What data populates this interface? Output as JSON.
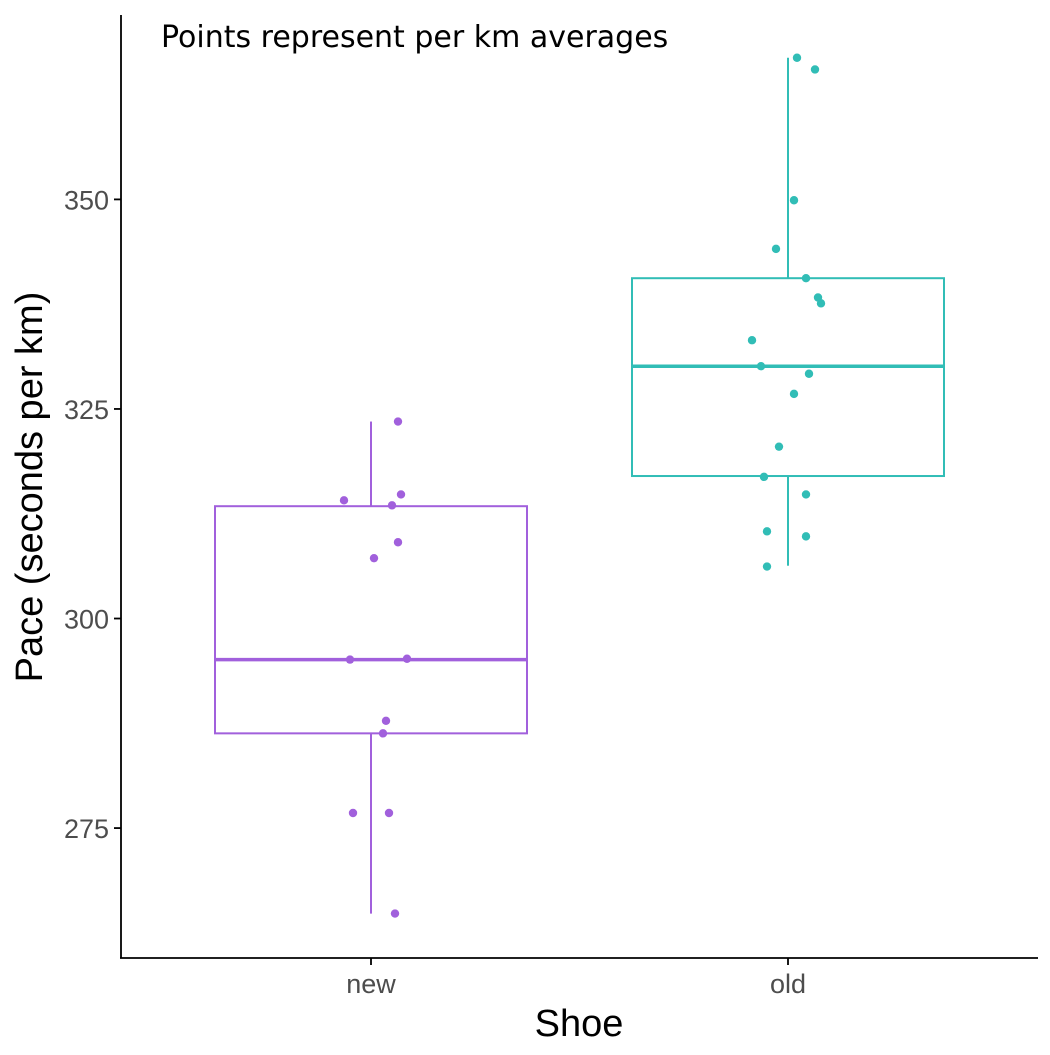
{
  "chart_data": {
    "type": "boxplot",
    "annotation": "Points represent per km averages",
    "xlabel": "Shoe",
    "ylabel": "Pace (seconds per km)",
    "categories": [
      "new",
      "old"
    ],
    "ylim": [
      259.5,
      372
    ],
    "yticks": [
      275,
      300,
      325,
      350
    ],
    "grid": false,
    "legend": "none",
    "colors": {
      "new": "#a160dc",
      "old": "#31bdb6",
      "axis": "#000000",
      "tick_label": "#4d4d4d"
    },
    "series": [
      {
        "category": "new",
        "boxplot": {
          "whisker_low": 264.8,
          "q1": 286.3,
          "median": 295.1,
          "q3": 313.4,
          "whisker_high": 323.5
        },
        "points": [
          {
            "x_jitter": 0.09,
            "y": 323.5
          },
          {
            "x_jitter": -0.09,
            "y": 314.1
          },
          {
            "x_jitter": 0.1,
            "y": 314.8
          },
          {
            "x_jitter": 0.07,
            "y": 313.5
          },
          {
            "x_jitter": 0.09,
            "y": 309.1
          },
          {
            "x_jitter": 0.01,
            "y": 307.2
          },
          {
            "x_jitter": -0.07,
            "y": 295.1
          },
          {
            "x_jitter": 0.12,
            "y": 295.2
          },
          {
            "x_jitter": 0.05,
            "y": 287.8
          },
          {
            "x_jitter": 0.04,
            "y": 286.3
          },
          {
            "x_jitter": -0.06,
            "y": 276.8
          },
          {
            "x_jitter": 0.06,
            "y": 276.8
          },
          {
            "x_jitter": 0.08,
            "y": 264.8
          }
        ]
      },
      {
        "category": "old",
        "boxplot": {
          "whisker_low": 306.3,
          "q1": 317.0,
          "median": 330.1,
          "q3": 340.6,
          "whisker_high": 366.9
        },
        "points": [
          {
            "x_jitter": 0.03,
            "y": 366.9
          },
          {
            "x_jitter": 0.09,
            "y": 365.5
          },
          {
            "x_jitter": 0.02,
            "y": 349.9
          },
          {
            "x_jitter": -0.04,
            "y": 344.1
          },
          {
            "x_jitter": 0.06,
            "y": 340.6
          },
          {
            "x_jitter": 0.1,
            "y": 338.3
          },
          {
            "x_jitter": 0.11,
            "y": 337.6
          },
          {
            "x_jitter": -0.12,
            "y": 333.2
          },
          {
            "x_jitter": -0.09,
            "y": 330.1
          },
          {
            "x_jitter": 0.07,
            "y": 329.2
          },
          {
            "x_jitter": 0.02,
            "y": 326.8
          },
          {
            "x_jitter": -0.03,
            "y": 320.5
          },
          {
            "x_jitter": -0.08,
            "y": 316.9
          },
          {
            "x_jitter": 0.06,
            "y": 314.8
          },
          {
            "x_jitter": -0.07,
            "y": 310.4
          },
          {
            "x_jitter": 0.06,
            "y": 309.8
          },
          {
            "x_jitter": -0.07,
            "y": 306.2
          }
        ]
      }
    ]
  }
}
